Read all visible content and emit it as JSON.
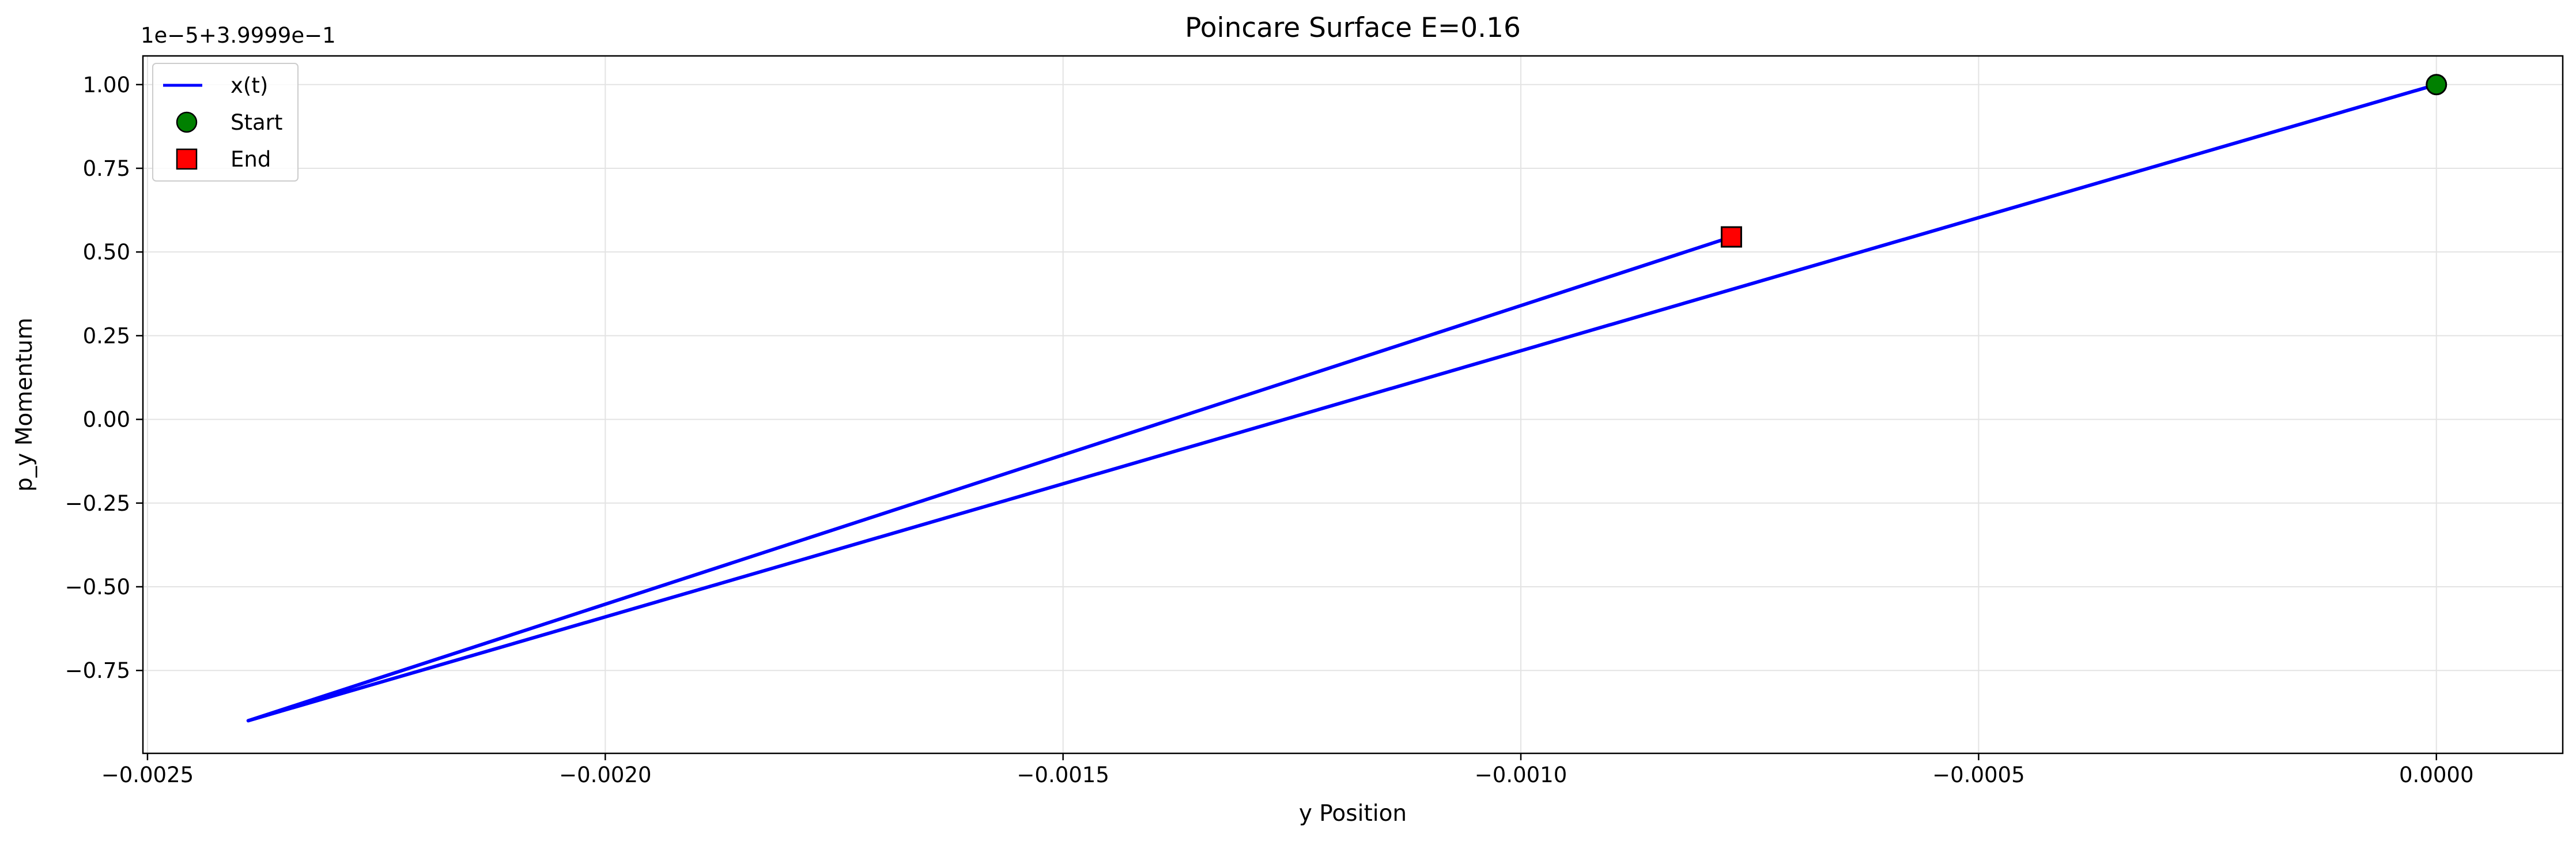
{
  "chart_data": {
    "type": "line",
    "title": "Poincare Surface E=0.16",
    "xlabel": "y Position",
    "ylabel": "p_y Momentum",
    "y_offset_text": "1e−5+3.9999e−1",
    "xlim": [
      -0.002505,
      0.000138
    ],
    "ylim": [
      -0.9976,
      1.0857
    ],
    "xticks": [
      -0.0025,
      -0.002,
      -0.0015,
      -0.001,
      -0.0005,
      0.0
    ],
    "xtick_labels": [
      "−0.0025",
      "−0.0020",
      "−0.0015",
      "−0.0010",
      "−0.0005",
      "0.0000"
    ],
    "yticks": [
      -0.75,
      -0.5,
      -0.25,
      0.0,
      0.25,
      0.5,
      0.75,
      1.0
    ],
    "ytick_labels": [
      "−0.75",
      "−0.50",
      "−0.25",
      "0.00",
      "0.25",
      "0.50",
      "0.75",
      "1.00"
    ],
    "grid": true,
    "legend_position": "top-left",
    "series": [
      {
        "name": "x(t)",
        "kind": "line",
        "color": "#0000ff",
        "x": [
          0.0,
          -0.00239,
          -0.00077
        ],
        "y": [
          1.0,
          -0.9,
          0.545
        ]
      },
      {
        "name": "Start",
        "kind": "marker",
        "marker": "circle",
        "color": "#008000",
        "x": [
          0.0
        ],
        "y": [
          1.0
        ]
      },
      {
        "name": "End",
        "kind": "marker",
        "marker": "square",
        "color": "#ff0000",
        "x": [
          -0.00077
        ],
        "y": [
          0.545
        ]
      }
    ]
  }
}
